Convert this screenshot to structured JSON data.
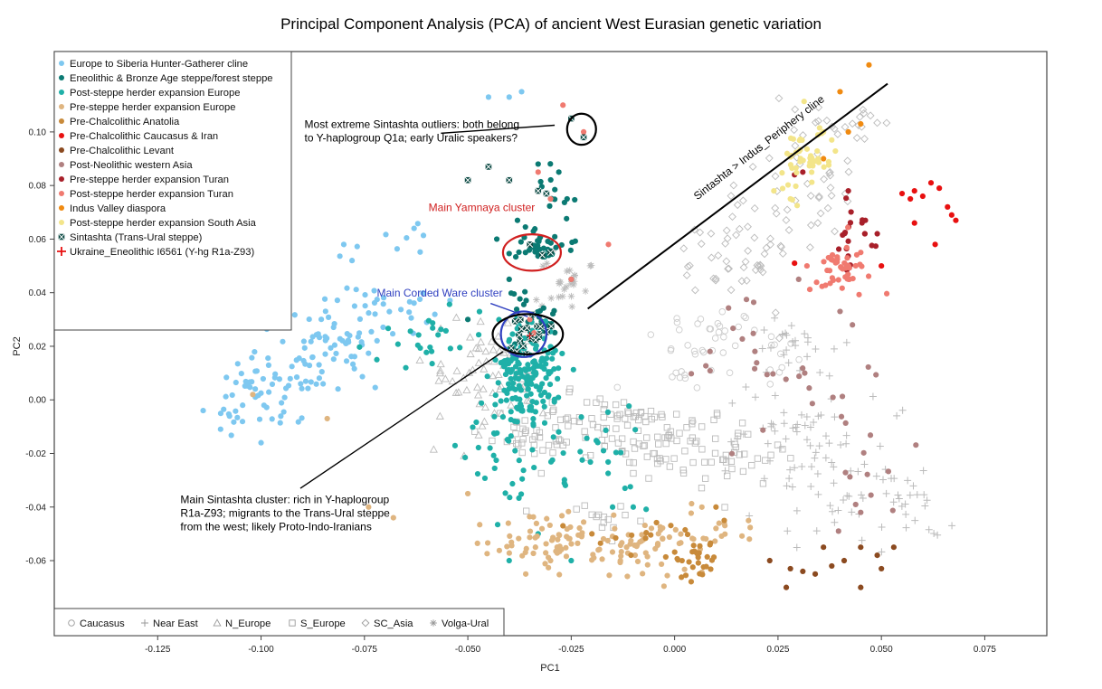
{
  "chart_data": {
    "type": "scatter",
    "title": "Principal Component Analysis (PCA) of ancient West Eurasian genetic variation",
    "xlabel": "PC1",
    "ylabel": "PC2",
    "xlim": [
      -0.15,
      0.09
    ],
    "ylim": [
      -0.088,
      0.13
    ],
    "x_ticks": [
      -0.125,
      -0.1,
      -0.075,
      -0.05,
      -0.025,
      0.0,
      0.025,
      0.05,
      0.075
    ],
    "x_tick_labels": [
      "-0.125",
      "-0.100",
      "-0.075",
      "-0.050",
      "-0.025",
      "0.000",
      "0.025",
      "0.050",
      "0.075"
    ],
    "y_ticks": [
      -0.06,
      -0.04,
      -0.02,
      0.0,
      0.02,
      0.04,
      0.06,
      0.08,
      0.1
    ],
    "y_tick_labels": [
      "-0.06",
      "-0.04",
      "-0.02",
      "0.00",
      "0.02",
      "0.04",
      "0.06",
      "0.08",
      "0.10"
    ],
    "grid": false,
    "legend_placement": "top-left",
    "series": [
      {
        "name": "Europe to Siberia Hunter-Gatherer cline",
        "color": "#7ec8f0",
        "marker": "dot",
        "clusters": [
          {
            "cx": -0.098,
            "cy": 0.005,
            "sx": 0.008,
            "sy": 0.008,
            "n": 70
          },
          {
            "cx": -0.085,
            "cy": 0.02,
            "sx": 0.008,
            "sy": 0.006,
            "n": 45
          },
          {
            "cx": -0.072,
            "cy": 0.032,
            "sx": 0.006,
            "sy": 0.006,
            "n": 35
          },
          {
            "cx": -0.07,
            "cy": 0.06,
            "sx": 0.006,
            "sy": 0.008,
            "n": 8
          }
        ],
        "points": [
          [
            -0.078,
            0.052
          ],
          [
            -0.08,
            0.058
          ],
          [
            -0.063,
            0.064
          ],
          [
            -0.04,
            0.113
          ],
          [
            -0.045,
            0.113
          ],
          [
            -0.037,
            0.115
          ],
          [
            -0.114,
            -0.004
          ],
          [
            -0.1,
            -0.016
          ]
        ]
      },
      {
        "name": "Eneolithic & Bronze Age steppe/forest steppe",
        "color": "#0b7a73",
        "marker": "dot",
        "clusters": [
          {
            "cx": -0.032,
            "cy": 0.057,
            "sx": 0.003,
            "sy": 0.003,
            "n": 40
          },
          {
            "cx": -0.034,
            "cy": 0.03,
            "sx": 0.004,
            "sy": 0.006,
            "n": 25
          },
          {
            "cx": -0.03,
            "cy": 0.075,
            "sx": 0.004,
            "sy": 0.008,
            "n": 12
          }
        ],
        "points": [
          [
            -0.043,
            0.06
          ],
          [
            -0.038,
            0.067
          ],
          [
            -0.04,
            0.045
          ],
          [
            -0.028,
            0.085
          ],
          [
            -0.026,
            0.075
          ],
          [
            -0.033,
            0.088
          ],
          [
            -0.025,
            0.045
          ],
          [
            -0.05,
            0.03
          ]
        ]
      },
      {
        "name": "Post-steppe herder expansion Europe",
        "color": "#1fb0a8",
        "marker": "dot",
        "clusters": [
          {
            "cx": -0.036,
            "cy": 0.01,
            "sx": 0.004,
            "sy": 0.01,
            "n": 170
          },
          {
            "cx": -0.04,
            "cy": -0.02,
            "sx": 0.006,
            "sy": 0.01,
            "n": 30
          },
          {
            "cx": -0.02,
            "cy": -0.02,
            "sx": 0.01,
            "sy": 0.01,
            "n": 30
          },
          {
            "cx": -0.06,
            "cy": 0.02,
            "sx": 0.006,
            "sy": 0.005,
            "n": 20
          }
        ],
        "points": [
          [
            -0.033,
            -0.05
          ],
          [
            -0.015,
            -0.04
          ],
          [
            -0.01,
            -0.04
          ],
          [
            -0.025,
            -0.06
          ],
          [
            -0.04,
            -0.06
          ],
          [
            -0.065,
            0.012
          ],
          [
            -0.072,
            0.015
          ],
          [
            -0.012,
            -0.033
          ]
        ]
      },
      {
        "name": "Pre-steppe herder expansion Europe",
        "color": "#dfb580",
        "marker": "dot",
        "clusters": [
          {
            "cx": -0.008,
            "cy": -0.055,
            "sx": 0.007,
            "sy": 0.005,
            "n": 60
          },
          {
            "cx": -0.032,
            "cy": -0.053,
            "sx": 0.007,
            "sy": 0.005,
            "n": 60
          },
          {
            "cx": 0.01,
            "cy": -0.047,
            "sx": 0.006,
            "sy": 0.005,
            "n": 20
          }
        ],
        "points": [
          [
            -0.068,
            -0.044
          ],
          [
            -0.05,
            -0.035
          ],
          [
            -0.074,
            -0.04
          ],
          [
            -0.102,
            0.002
          ],
          [
            -0.084,
            -0.007
          ],
          [
            -0.036,
            -0.065
          ],
          [
            -0.03,
            -0.06
          ]
        ]
      },
      {
        "name": "Pre-Chalcolithic Anatolia",
        "color": "#c88a3a",
        "marker": "dot",
        "clusters": [
          {
            "cx": 0.004,
            "cy": -0.058,
            "sx": 0.003,
            "sy": 0.004,
            "n": 30
          },
          {
            "cx": -0.01,
            "cy": -0.05,
            "sx": 0.006,
            "sy": 0.004,
            "n": 10
          }
        ],
        "points": [
          [
            0.01,
            -0.04
          ],
          [
            0.012,
            -0.045
          ],
          [
            -0.027,
            -0.047
          ],
          [
            -0.02,
            -0.05
          ]
        ]
      },
      {
        "name": "Pre-Chalcolithic Caucasus & Iran",
        "color": "#e81010",
        "marker": "dot",
        "points": [
          [
            0.055,
            0.077
          ],
          [
            0.057,
            0.075
          ],
          [
            0.058,
            0.078
          ],
          [
            0.06,
            0.076
          ],
          [
            0.062,
            0.081
          ],
          [
            0.064,
            0.079
          ],
          [
            0.066,
            0.072
          ],
          [
            0.067,
            0.069
          ],
          [
            0.068,
            0.067
          ],
          [
            0.058,
            0.066
          ],
          [
            0.063,
            0.058
          ],
          [
            0.05,
            0.05
          ],
          [
            0.046,
            0.062
          ],
          [
            0.029,
            0.051
          ]
        ]
      },
      {
        "name": "Pre-Chalcolithic Levant",
        "color": "#8b4a20",
        "marker": "dot",
        "points": [
          [
            0.023,
            -0.06
          ],
          [
            0.028,
            -0.063
          ],
          [
            0.031,
            -0.064
          ],
          [
            0.034,
            -0.065
          ],
          [
            0.038,
            -0.062
          ],
          [
            0.036,
            -0.055
          ],
          [
            0.041,
            -0.06
          ],
          [
            0.045,
            -0.055
          ],
          [
            0.049,
            -0.058
          ],
          [
            0.053,
            -0.055
          ],
          [
            0.027,
            -0.07
          ],
          [
            0.045,
            -0.07
          ],
          [
            0.05,
            -0.063
          ]
        ]
      },
      {
        "name": "Post-Neolithic western Asia",
        "color": "#b08080",
        "marker": "dot",
        "clusters": [
          {
            "cx": 0.015,
            "cy": 0.02,
            "sx": 0.007,
            "sy": 0.008,
            "n": 15
          },
          {
            "cx": 0.035,
            "cy": 0.0,
            "sx": 0.008,
            "sy": 0.01,
            "n": 15
          },
          {
            "cx": 0.045,
            "cy": -0.028,
            "sx": 0.005,
            "sy": 0.01,
            "n": 10
          }
        ],
        "points": [
          [
            0.04,
            0.033
          ],
          [
            0.043,
            0.028
          ],
          [
            0.03,
            0.045
          ],
          [
            0.045,
            -0.042
          ]
        ]
      },
      {
        "name": "Pre-steppe herder expansion Turan",
        "color": "#a8202a",
        "marker": "dot",
        "clusters": [
          {
            "cx": 0.043,
            "cy": 0.062,
            "sx": 0.003,
            "sy": 0.006,
            "n": 18
          }
        ],
        "points": [
          [
            0.029,
            0.084
          ],
          [
            0.031,
            0.085
          ],
          [
            0.046,
            0.062
          ],
          [
            0.042,
            0.078
          ],
          [
            0.049,
            0.062
          ]
        ]
      },
      {
        "name": "Post-steppe herder expansion Turan",
        "color": "#f07a70",
        "marker": "dot",
        "clusters": [
          {
            "cx": 0.041,
            "cy": 0.05,
            "sx": 0.004,
            "sy": 0.005,
            "n": 45
          }
        ],
        "points": [
          [
            -0.03,
            0.075
          ],
          [
            -0.033,
            0.085
          ],
          [
            -0.016,
            0.058
          ],
          [
            -0.025,
            0.045
          ],
          [
            -0.027,
            0.11
          ],
          [
            -0.022,
            0.1
          ],
          [
            -0.035,
            0.03
          ],
          [
            -0.034,
            0.025
          ],
          [
            0.032,
            0.05
          ]
        ]
      },
      {
        "name": "Indus Valley diaspora",
        "color": "#f08a10",
        "marker": "dot",
        "points": [
          [
            0.047,
            0.125
          ],
          [
            0.04,
            0.115
          ],
          [
            0.042,
            0.1
          ],
          [
            0.036,
            0.09
          ],
          [
            0.045,
            0.103
          ]
        ]
      },
      {
        "name": "Post-steppe herder expansion South Asia",
        "color": "#f3e58a",
        "marker": "dot",
        "clusters": [
          {
            "cx": 0.032,
            "cy": 0.088,
            "sx": 0.004,
            "sy": 0.007,
            "n": 45
          }
        ],
        "points": [
          [
            0.036,
            0.1
          ],
          [
            0.038,
            0.097
          ],
          [
            0.024,
            0.078
          ],
          [
            0.028,
            0.075
          ]
        ]
      },
      {
        "name": "Sintashta (Trans-Ural steppe)",
        "color": "#0d4a44",
        "marker": "xsquare",
        "clusters": [
          {
            "cx": -0.035,
            "cy": 0.025,
            "sx": 0.003,
            "sy": 0.003,
            "n": 20
          }
        ],
        "points": [
          [
            -0.025,
            0.105
          ],
          [
            -0.022,
            0.098
          ],
          [
            -0.045,
            0.087
          ],
          [
            -0.05,
            0.082
          ],
          [
            -0.04,
            0.082
          ],
          [
            -0.033,
            0.078
          ],
          [
            -0.031,
            0.077
          ],
          [
            -0.035,
            0.058
          ],
          [
            -0.032,
            0.054
          ],
          [
            -0.03,
            0.055
          ]
        ]
      },
      {
        "name": "Ukraine_Eneolithic I6561 (Y-hg R1a-Z93)",
        "color": "#e81010",
        "marker": "plus",
        "points": [
          [
            -0.035,
            0.024
          ]
        ]
      }
    ],
    "background_series": [
      {
        "name": "Caucasus",
        "color": "#cccccc",
        "marker": "circle",
        "clusters": [
          {
            "cx": 0.01,
            "cy": 0.025,
            "sx": 0.005,
            "sy": 0.007,
            "n": 25
          },
          {
            "cx": 0.002,
            "cy": 0.012,
            "sx": 0.006,
            "sy": 0.008,
            "n": 15
          },
          {
            "cx": 0.025,
            "cy": 0.015,
            "sx": 0.006,
            "sy": 0.007,
            "n": 10
          }
        ]
      },
      {
        "name": "Near East",
        "color": "#bbbbbb",
        "marker": "plus",
        "clusters": [
          {
            "cx": 0.03,
            "cy": -0.01,
            "sx": 0.01,
            "sy": 0.012,
            "n": 60
          },
          {
            "cx": 0.045,
            "cy": -0.04,
            "sx": 0.008,
            "sy": 0.008,
            "n": 30
          },
          {
            "cx": 0.03,
            "cy": 0.02,
            "sx": 0.006,
            "sy": 0.008,
            "n": 25
          },
          {
            "cx": 0.055,
            "cy": -0.04,
            "sx": 0.005,
            "sy": 0.008,
            "n": 20
          }
        ]
      },
      {
        "name": "N_Europe",
        "color": "#bbbbbb",
        "marker": "triangle",
        "clusters": [
          {
            "cx": -0.045,
            "cy": 0.01,
            "sx": 0.007,
            "sy": 0.01,
            "n": 70
          }
        ]
      },
      {
        "name": "S_Europe",
        "color": "#bbbbbb",
        "marker": "square",
        "clusters": [
          {
            "cx": -0.015,
            "cy": -0.01,
            "sx": 0.009,
            "sy": 0.006,
            "n": 70
          },
          {
            "cx": 0.005,
            "cy": -0.02,
            "sx": 0.01,
            "sy": 0.006,
            "n": 70
          },
          {
            "cx": -0.035,
            "cy": -0.012,
            "sx": 0.006,
            "sy": 0.005,
            "n": 40
          },
          {
            "cx": -0.015,
            "cy": -0.045,
            "sx": 0.006,
            "sy": 0.005,
            "n": 15
          }
        ]
      },
      {
        "name": "SC_Asia",
        "color": "#bbbbbb",
        "marker": "diamond",
        "clusters": [
          {
            "cx": 0.015,
            "cy": 0.055,
            "sx": 0.007,
            "sy": 0.01,
            "n": 50
          },
          {
            "cx": 0.03,
            "cy": 0.08,
            "sx": 0.008,
            "sy": 0.01,
            "n": 40
          },
          {
            "cx": 0.038,
            "cy": 0.105,
            "sx": 0.006,
            "sy": 0.006,
            "n": 20
          }
        ]
      },
      {
        "name": "Volga-Ural",
        "color": "#bbbbbb",
        "marker": "asterisk",
        "clusters": [
          {
            "cx": -0.026,
            "cy": 0.045,
            "sx": 0.003,
            "sy": 0.005,
            "n": 25
          }
        ]
      }
    ],
    "annotations": [
      {
        "id": "outliers-note",
        "lines": [
          "Most extreme Sintashta outliers: both belong",
          "to Y-haplogroup Q1a; early Uralic speakers?"
        ],
        "color": "#000000",
        "at": [
          -0.0895,
          0.1015
        ],
        "pointer": [
          [
            -0.0565,
            0.0995
          ],
          [
            -0.029,
            0.1025
          ]
        ],
        "ellipse": {
          "cx": -0.0225,
          "cy": 0.101,
          "rx": 0.0035,
          "ry": 0.0058,
          "color": "#000000"
        }
      },
      {
        "id": "yamnaya-label",
        "lines": [
          "Main Yamnaya cluster"
        ],
        "color": "#d02020",
        "at": [
          -0.0595,
          0.0705
        ],
        "ellipse": {
          "cx": -0.0345,
          "cy": 0.055,
          "rx": 0.007,
          "ry": 0.0068,
          "color": "#d02020"
        }
      },
      {
        "id": "corded-label",
        "lines": [
          "Main Corded Ware cluster"
        ],
        "color": "#3040c0",
        "at": [
          -0.072,
          0.0385
        ],
        "pointer": [
          [
            -0.0445,
            0.036
          ],
          [
            -0.0355,
            0.031
          ]
        ],
        "ellipse": {
          "cx": -0.0365,
          "cy": 0.0245,
          "rx": 0.0055,
          "ry": 0.0085,
          "color": "#3040c0"
        }
      },
      {
        "id": "sintashta-note",
        "lines": [
          "Main Sintashta cluster: rich in Y-haplogroup",
          "R1a-Z93; migrants to the Trans-Ural steppe",
          "from the west; likely Proto-Indo-Iranians"
        ],
        "color": "#000000",
        "at": [
          -0.1195,
          -0.0385
        ],
        "pointer": [
          [
            -0.0905,
            -0.033
          ],
          [
            -0.0415,
            0.018
          ]
        ],
        "ellipse": {
          "cx": -0.0355,
          "cy": 0.0245,
          "rx": 0.0085,
          "ry": 0.0075,
          "color": "#000000"
        }
      },
      {
        "id": "cline-label",
        "lines": [
          "Sintashta > Indus_Periphery cline"
        ],
        "color": "#000000",
        "at": [
          0.0055,
          0.0745
        ],
        "rotate": -38,
        "pointer": [
          [
            -0.021,
            0.034
          ],
          [
            0.0515,
            0.118
          ]
        ]
      }
    ]
  }
}
